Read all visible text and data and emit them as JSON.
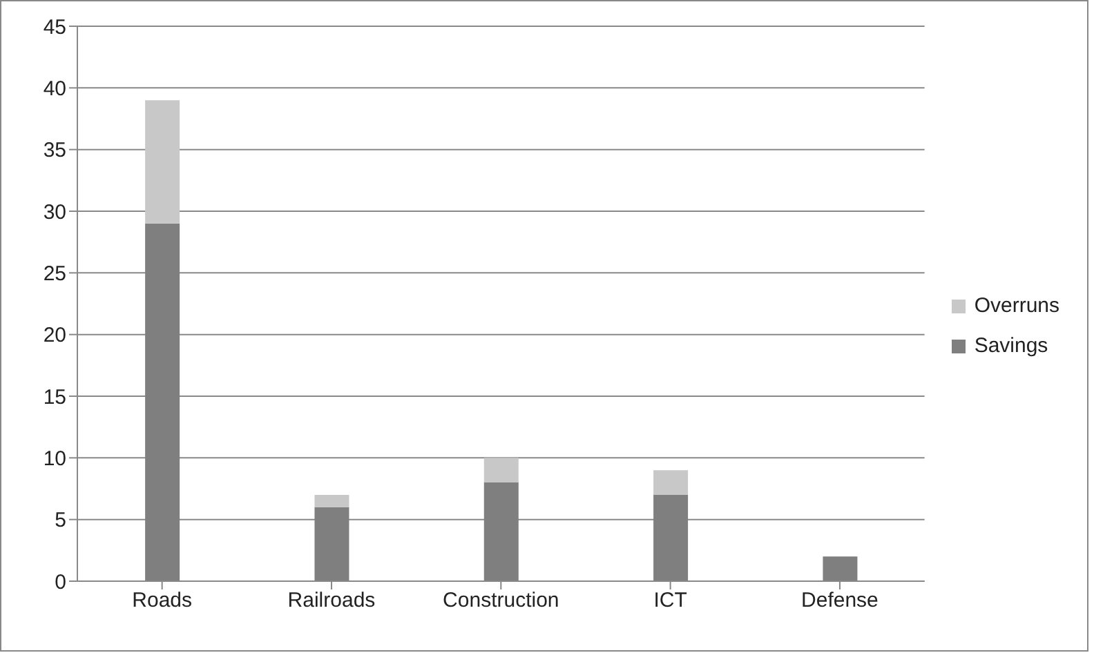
{
  "chart_data": {
    "type": "bar",
    "categories": [
      "Roads",
      "Railroads",
      "Construction",
      "ICT",
      "Defense"
    ],
    "series": [
      {
        "name": "Savings",
        "color": "#7f7f7f",
        "values": [
          29,
          6,
          8,
          7,
          2
        ]
      },
      {
        "name": "Overruns",
        "color": "#c8c8c8",
        "values": [
          10,
          1,
          2,
          2,
          0
        ]
      }
    ],
    "stacked": true,
    "ylim": [
      0,
      45
    ],
    "yticks": [
      0,
      5,
      10,
      15,
      20,
      25,
      30,
      35,
      40,
      45
    ],
    "grid": "y",
    "legend": "right"
  }
}
